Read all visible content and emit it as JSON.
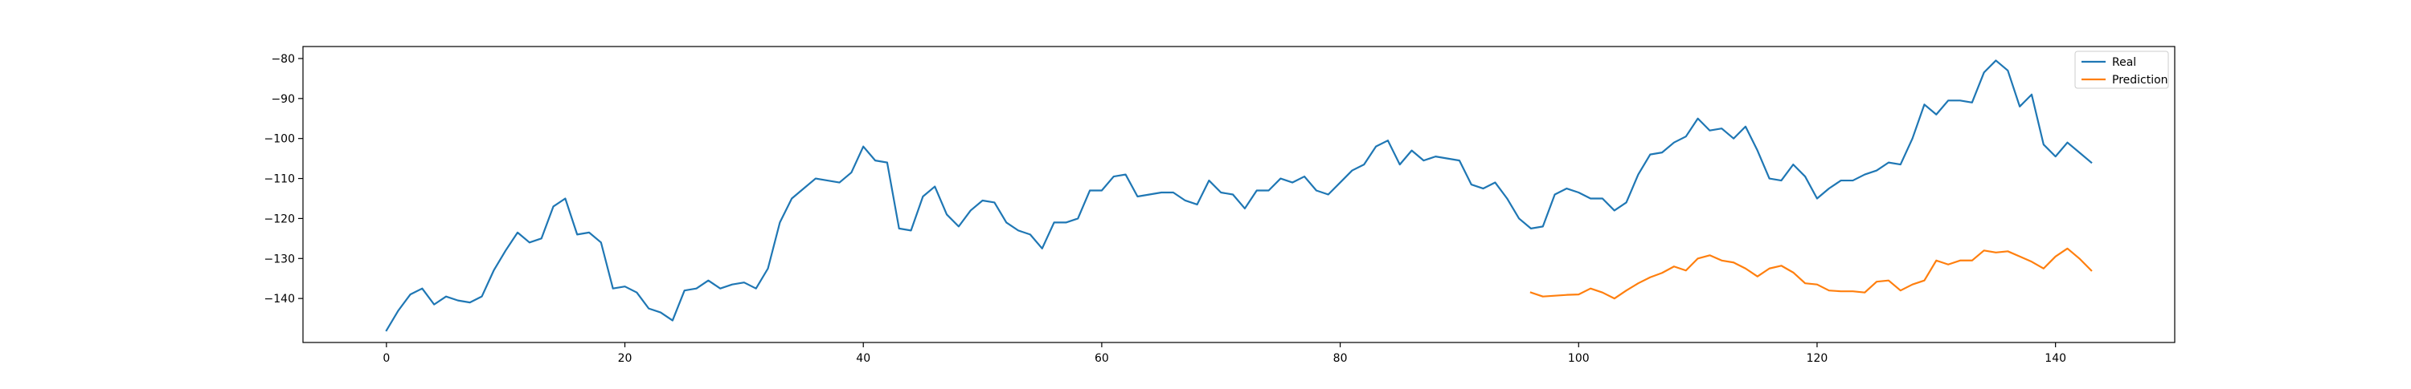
{
  "chart_data": {
    "type": "line",
    "title": "",
    "xlabel": "",
    "ylabel": "",
    "xlim": [
      -7,
      150
    ],
    "ylim": [
      -151,
      -77
    ],
    "xticks": [
      0,
      20,
      40,
      60,
      80,
      100,
      120,
      140
    ],
    "yticks": [
      -140,
      -130,
      -120,
      -110,
      -100,
      -90,
      -80
    ],
    "tick_labels": {
      "x": [
        "0",
        "20",
        "40",
        "60",
        "80",
        "100",
        "120",
        "140"
      ],
      "y": [
        "−140",
        "−130",
        "−120",
        "−110",
        "−100",
        "−90",
        "−80"
      ]
    },
    "grid": false,
    "legend": {
      "position": "top-right"
    },
    "series": [
      {
        "name": "Real",
        "color": "#1f77b4",
        "x_start": 0,
        "values": [
          -148,
          -143,
          -139,
          -137.5,
          -141.5,
          -139.5,
          -140.5,
          -141,
          -139.5,
          -133,
          -128,
          -123.5,
          -126,
          -125,
          -117,
          -115,
          -124,
          -123.5,
          -126,
          -137.5,
          -137,
          -138.5,
          -142.5,
          -143.5,
          -145.5,
          -138,
          -137.5,
          -135.5,
          -137.5,
          -136.5,
          -136,
          -137.5,
          -132.5,
          -121,
          -115,
          -112.5,
          -110,
          -110.5,
          -111,
          -108.5,
          -102,
          -105.5,
          -106,
          -122.5,
          -123,
          -114.5,
          -112,
          -119,
          -122,
          -118,
          -115.5,
          -116,
          -121,
          -123,
          -124,
          -127.5,
          -121,
          -121,
          -120,
          -113,
          -113,
          -109.5,
          -109,
          -114.5,
          -114,
          -113.5,
          -113.5,
          -115.5,
          -116.5,
          -110.5,
          -113.5,
          -114,
          -117.5,
          -113,
          -113,
          -110,
          -111,
          -109.5,
          -113,
          -114,
          -111,
          -108,
          -106.5,
          -102,
          -100.5,
          -106.5,
          -103,
          -105.5,
          -104.5,
          -105,
          -105.5,
          -111.5,
          -112.5,
          -111,
          -115,
          -120,
          -122.5,
          -122,
          -114,
          -112.5,
          -113.5,
          -115,
          -115,
          -118,
          -116,
          -109,
          -104,
          -103.5,
          -101,
          -99.5,
          -95,
          -98,
          -97.5,
          -100,
          -97,
          -103,
          -110,
          -110.5,
          -106.5,
          -109.5,
          -115,
          -112.5,
          -110.5,
          -110.5,
          -109,
          -108,
          -106,
          -106.5,
          -100,
          -91.5,
          -94,
          -90.5,
          -90.5,
          -91,
          -83.5,
          -80.5,
          -83,
          -92,
          -89,
          -101.5,
          -104.5,
          -101,
          -103.5,
          -106
        ]
      },
      {
        "name": "Prediction",
        "color": "#ff7f0e",
        "x_start": 96,
        "values": [
          -138.5,
          -139.5,
          -139.3,
          -139.1,
          -139,
          -137.5,
          -138.5,
          -140,
          -138,
          -136.2,
          -134.7,
          -133.6,
          -132,
          -133,
          -130,
          -129.2,
          -130.5,
          -131,
          -132.5,
          -134.5,
          -132.5,
          -131.8,
          -133.5,
          -136.2,
          -136.5,
          -138,
          -138.2,
          -138.2,
          -138.5,
          -135.8,
          -135.5,
          -138,
          -136.5,
          -135.5,
          -130.5,
          -131.5,
          -130.5,
          -130.5,
          -128,
          -128.5,
          -128.2,
          -129.5,
          -130.8,
          -132.5,
          -129.5,
          -127.5,
          -130,
          -133
        ]
      }
    ]
  }
}
